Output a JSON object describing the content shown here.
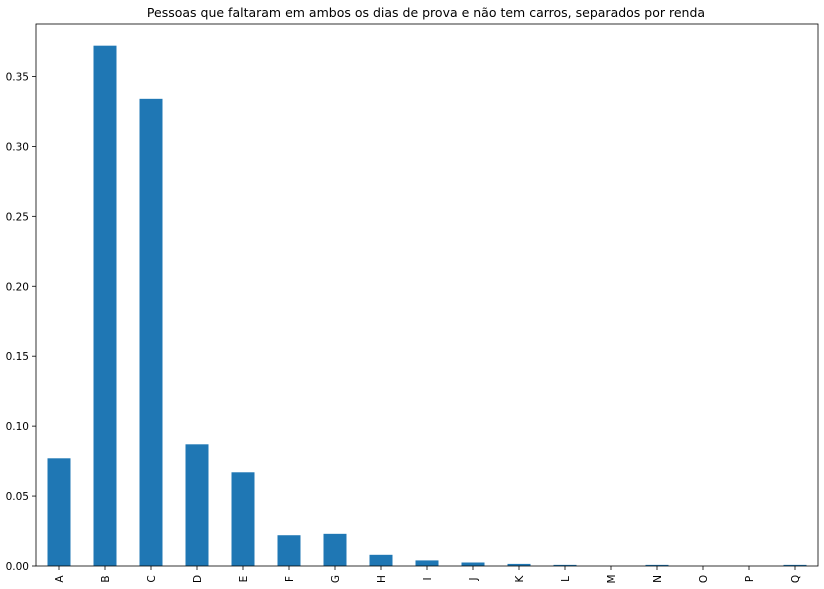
{
  "chart_data": {
    "type": "bar",
    "title": "Pessoas que faltaram em ambos os dias de prova e não tem carros, separados por renda",
    "xlabel": "",
    "ylabel": "",
    "categories": [
      "A",
      "B",
      "C",
      "D",
      "E",
      "F",
      "G",
      "H",
      "I",
      "J",
      "K",
      "L",
      "M",
      "N",
      "O",
      "P",
      "Q"
    ],
    "values": [
      0.077,
      0.372,
      0.334,
      0.087,
      0.067,
      0.022,
      0.023,
      0.008,
      0.004,
      0.0025,
      0.0015,
      0.0008,
      0.0,
      0.0008,
      0.0,
      0.0,
      0.0008
    ],
    "ylim": [
      0,
      0.3875
    ],
    "yticks": [
      "0.00",
      "0.05",
      "0.10",
      "0.15",
      "0.20",
      "0.25",
      "0.30",
      "0.35"
    ],
    "bar_color": "#1f77b4",
    "grid": false,
    "legend": "none"
  }
}
